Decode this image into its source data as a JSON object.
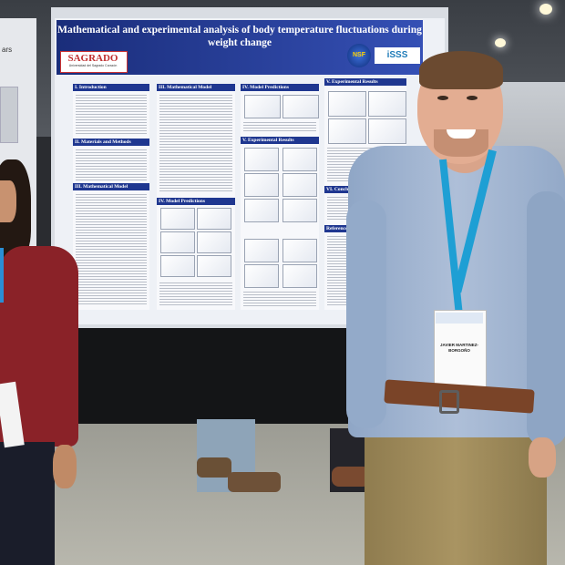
{
  "poster": {
    "title_line1": "Mathematical and experimental analysis of body temperature fluctuations during",
    "title_line2": "weight change",
    "logo_left": "SAGRADO",
    "logo_left_sub": "Universidad del Sagrado Corazón",
    "logo_nsf": "NSF",
    "logo_right": "iSSS",
    "sections": {
      "intro": "I. Introduction",
      "materials": "II. Materials and Methods",
      "math_model_a": "III. Mathematical Model",
      "math_model_b": "III. Mathematical Model",
      "model_pred_a": "IV. Model Predictions",
      "model_pred_b": "IV. Model Predictions",
      "exp_results_a": "V. Experimental Results",
      "exp_results_b": "V. Experimental Results",
      "conclusions": "VI. Conclusions",
      "references": "References / Ack"
    }
  },
  "badge": {
    "name": "JAVIER MARTINEZ-BORGOÑO"
  },
  "left_board_text": "ars"
}
